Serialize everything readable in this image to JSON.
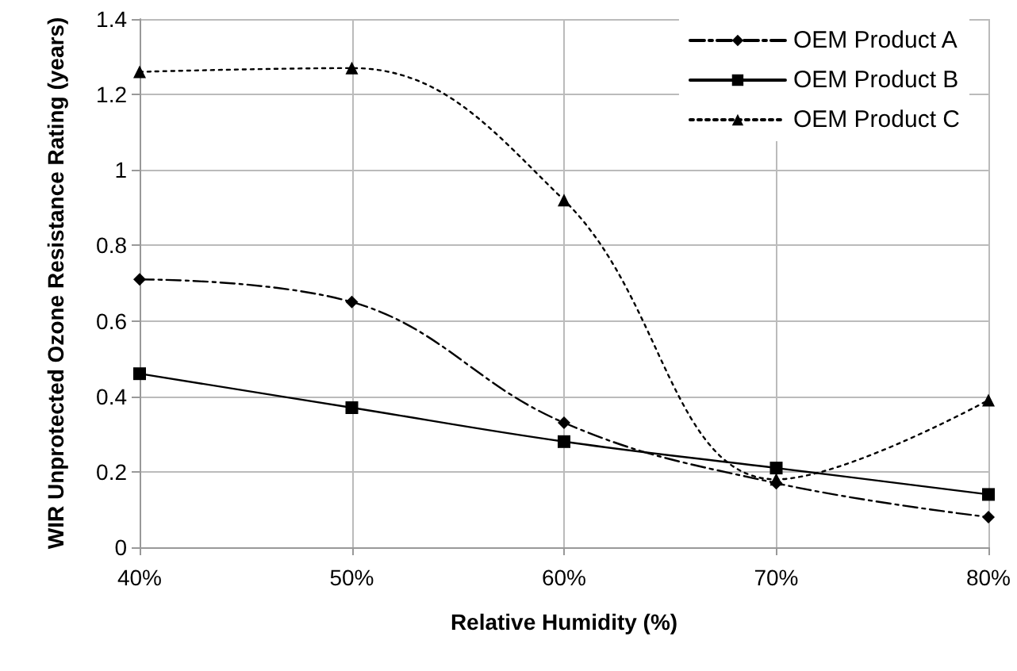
{
  "chart_data": {
    "type": "line",
    "xlabel": "Relative Humidity (%)",
    "ylabel": "WIR Unprotected Ozone Resistance Rating (years)",
    "categories": [
      "40%",
      "50%",
      "60%",
      "70%",
      "80%"
    ],
    "series": [
      {
        "name": "OEM Product A",
        "color": "#000000",
        "marker": "diamond",
        "line_style": "dashed",
        "values": [
          0.71,
          0.65,
          0.33,
          0.17,
          0.08
        ]
      },
      {
        "name": "OEM Product B",
        "color": "#000000",
        "marker": "square",
        "line_style": "solid",
        "values": [
          0.46,
          0.37,
          0.28,
          0.21,
          0.14
        ]
      },
      {
        "name": "OEM Product C",
        "color": "#000000",
        "marker": "triangle",
        "line_style": "dotted",
        "values": [
          1.26,
          1.27,
          0.92,
          0.18,
          0.39
        ]
      }
    ],
    "ylim": [
      0,
      1.4
    ],
    "yticks": [
      0,
      0.2,
      0.4,
      0.6,
      0.8,
      1,
      1.2,
      1.4
    ],
    "grid": true,
    "legend": "top right"
  }
}
